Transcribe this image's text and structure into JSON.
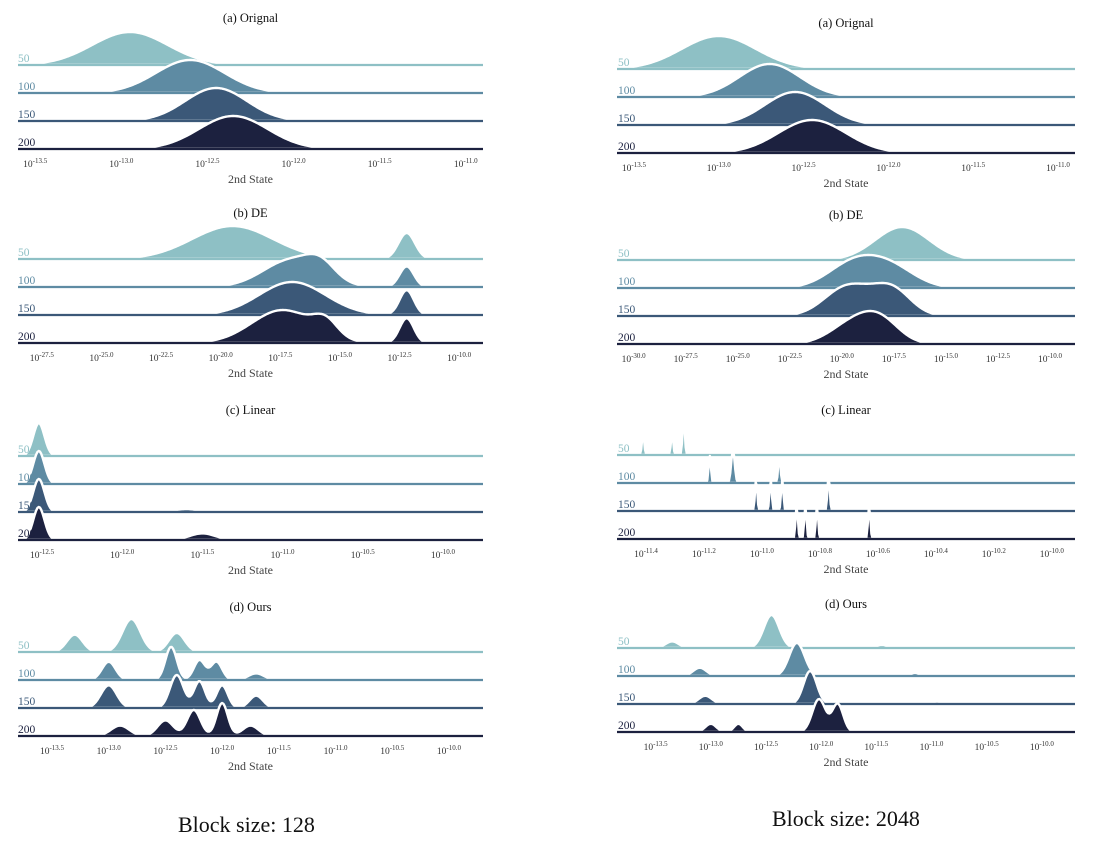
{
  "columns": [
    {
      "caption": "Block size: 128",
      "panels": [
        {
          "title": "(a) Orignal",
          "xlabel": "2nd State",
          "xlim": [
            -13.6,
            -10.9
          ],
          "ticks": [
            -13.5,
            -13.0,
            -12.5,
            -12.0,
            -11.5,
            -11.0
          ],
          "tick_labels": [
            "10^{-13.5}",
            "10^{-13.0}",
            "10^{-12.5}",
            "10^{-12.0}",
            "10^{-11.5}",
            "10^{-11.0}"
          ],
          "series": [
            {
              "name": "50",
              "peaks": [
                [
                  -12.95,
                  0.22,
                  1.0
                ]
              ]
            },
            {
              "name": "100",
              "peaks": [
                [
                  -12.6,
                  0.2,
                  1.0
                ]
              ]
            },
            {
              "name": "150",
              "peaks": [
                [
                  -12.45,
                  0.18,
                  1.0
                ]
              ]
            },
            {
              "name": "200",
              "peaks": [
                [
                  -12.35,
                  0.2,
                  1.0
                ]
              ]
            }
          ]
        },
        {
          "title": "(b) DE",
          "xlabel": "2nd State",
          "xlim": [
            -28.5,
            -9.0
          ],
          "ticks": [
            -27.5,
            -25.0,
            -22.5,
            -20.0,
            -17.5,
            -15.0,
            -12.5,
            -10.0
          ],
          "tick_labels": [
            "10^{-27.5}",
            "10^{-25.0}",
            "10^{-22.5}",
            "10^{-20.0}",
            "10^{-17.5}",
            "10^{-15.0}",
            "10^{-12.5}",
            "10^{-10.0}"
          ],
          "series": [
            {
              "name": "50",
              "peaks": [
                [
                  -19.5,
                  1.7,
                  0.95
                ],
                [
                  -12.2,
                  0.35,
                  0.75
                ]
              ]
            },
            {
              "name": "100",
              "peaks": [
                [
                  -17.0,
                  1.2,
                  1.0
                ],
                [
                  -15.8,
                  0.6,
                  0.5
                ],
                [
                  -12.2,
                  0.3,
                  0.75
                ]
              ]
            },
            {
              "name": "150",
              "peaks": [
                [
                  -17.0,
                  1.4,
                  1.0
                ],
                [
                  -12.2,
                  0.3,
                  0.75
                ]
              ]
            },
            {
              "name": "200",
              "peaks": [
                [
                  -17.4,
                  1.3,
                  1.0
                ],
                [
                  -15.6,
                  0.5,
                  0.45
                ],
                [
                  -12.2,
                  0.3,
                  0.75
                ]
              ]
            }
          ]
        },
        {
          "title": "(c) Linear",
          "xlabel": "2nd State",
          "xlim": [
            -12.65,
            -9.75
          ],
          "ticks": [
            -12.5,
            -12.0,
            -11.5,
            -11.0,
            -10.5,
            -10.0
          ],
          "tick_labels": [
            "10^{-12.5}",
            "10^{-12.0}",
            "10^{-11.5}",
            "10^{-11.0}",
            "10^{-10.5}",
            "10^{-10.0}"
          ],
          "series": [
            {
              "name": "50",
              "peaks": [
                [
                  -12.52,
                  0.035,
                  1.0
                ],
                [
                  -12.1,
                  0.04,
                  0.03
                ]
              ]
            },
            {
              "name": "100",
              "peaks": [
                [
                  -12.52,
                  0.035,
                  0.8
                ],
                [
                  -11.7,
                  0.08,
                  0.04
                ]
              ]
            },
            {
              "name": "150",
              "peaks": [
                [
                  -12.52,
                  0.035,
                  0.75
                ],
                [
                  -11.6,
                  0.08,
                  0.07
                ]
              ]
            },
            {
              "name": "200",
              "peaks": [
                [
                  -12.52,
                  0.035,
                  0.45
                ],
                [
                  -11.5,
                  0.08,
                  0.09
                ]
              ]
            }
          ]
        },
        {
          "title": "(d) Ours",
          "xlabel": "2nd State",
          "xlim": [
            -13.8,
            -9.7
          ],
          "ticks": [
            -13.5,
            -13.0,
            -12.5,
            -12.0,
            -11.5,
            -11.0,
            -10.5,
            -10.0
          ],
          "tick_labels": [
            "10^{-13.5}",
            "10^{-13.0}",
            "10^{-12.5}",
            "10^{-12.0}",
            "10^{-11.5}",
            "10^{-11.0}",
            "10^{-10.5}",
            "10^{-10.0}"
          ],
          "series": [
            {
              "name": "50",
              "peaks": [
                [
                  -13.3,
                  0.07,
                  0.5
                ],
                [
                  -12.8,
                  0.08,
                  0.95
                ],
                [
                  -12.4,
                  0.07,
                  0.55
                ]
              ]
            },
            {
              "name": "100",
              "peaks": [
                [
                  -13.0,
                  0.06,
                  0.55
                ],
                [
                  -12.45,
                  0.05,
                  1.0
                ],
                [
                  -12.2,
                  0.05,
                  0.6
                ],
                [
                  -12.05,
                  0.05,
                  0.55
                ],
                [
                  -11.7,
                  0.07,
                  0.2
                ]
              ]
            },
            {
              "name": "150",
              "peaks": [
                [
                  -13.0,
                  0.07,
                  0.55
                ],
                [
                  -12.4,
                  0.06,
                  0.8
                ],
                [
                  -12.2,
                  0.05,
                  0.65
                ],
                [
                  -12.0,
                  0.05,
                  0.55
                ],
                [
                  -11.7,
                  0.06,
                  0.3
                ]
              ]
            },
            {
              "name": "200",
              "peaks": [
                [
                  -12.9,
                  0.08,
                  0.3
                ],
                [
                  -12.5,
                  0.07,
                  0.45
                ],
                [
                  -12.25,
                  0.06,
                  0.75
                ],
                [
                  -12.0,
                  0.05,
                  0.95
                ],
                [
                  -11.75,
                  0.07,
                  0.3
                ]
              ]
            }
          ]
        }
      ]
    },
    {
      "caption": "Block size: 2048",
      "panels": [
        {
          "title": "(a) Orignal",
          "xlabel": "2nd State",
          "xlim": [
            -13.6,
            -10.9
          ],
          "ticks": [
            -13.5,
            -13.0,
            -12.5,
            -12.0,
            -11.5,
            -11.0
          ],
          "tick_labels": [
            "10^{-13.5}",
            "10^{-13.0}",
            "10^{-12.5}",
            "10^{-12.0}",
            "10^{-11.5}",
            "10^{-11.0}"
          ],
          "series": [
            {
              "name": "50",
              "peaks": [
                [
                  -13.0,
                  0.22,
                  1.0
                ]
              ]
            },
            {
              "name": "100",
              "peaks": [
                [
                  -12.7,
                  0.18,
                  1.0
                ]
              ]
            },
            {
              "name": "150",
              "peaks": [
                [
                  -12.55,
                  0.18,
                  1.0
                ]
              ]
            },
            {
              "name": "200",
              "peaks": [
                [
                  -12.45,
                  0.2,
                  1.0
                ]
              ]
            }
          ]
        },
        {
          "title": "(b) DE",
          "xlabel": "2nd State",
          "xlim": [
            -30.8,
            -8.8
          ],
          "ticks": [
            -30.0,
            -27.5,
            -25.0,
            -22.5,
            -20.0,
            -17.5,
            -15.0,
            -12.5,
            -10.0
          ],
          "tick_labels": [
            "10^{-30.0}",
            "10^{-27.5}",
            "10^{-25.0}",
            "10^{-22.5}",
            "10^{-20.0}",
            "10^{-17.5}",
            "10^{-15.0}",
            "10^{-12.5}",
            "10^{-10.0}"
          ],
          "series": [
            {
              "name": "50",
              "peaks": [
                [
                  -17.1,
                  1.3,
                  1.0
                ]
              ]
            },
            {
              "name": "100",
              "peaks": [
                [
                  -19.5,
                  1.2,
                  0.85
                ],
                [
                  -17.7,
                  1.2,
                  0.75
                ]
              ]
            },
            {
              "name": "150",
              "peaks": [
                [
                  -19.7,
                  1.1,
                  0.85
                ],
                [
                  -17.6,
                  0.9,
                  0.75
                ]
              ]
            },
            {
              "name": "200",
              "peaks": [
                [
                  -19.4,
                  1.1,
                  0.85
                ],
                [
                  -18.1,
                  0.9,
                  0.75
                ]
              ]
            }
          ]
        },
        {
          "title": "(c) Linear",
          "xlabel": "2nd State",
          "xlim": [
            -11.5,
            -9.92
          ],
          "ticks": [
            -11.4,
            -11.2,
            -11.0,
            -10.8,
            -10.6,
            -10.4,
            -10.2,
            -10.0
          ],
          "tick_labels": [
            "10^{-11.4}",
            "10^{-11.2}",
            "10^{-11.0}",
            "10^{-10.8}",
            "10^{-10.6}",
            "10^{-10.4}",
            "10^{-10.2}",
            "10^{-10.0}"
          ],
          "series": [
            {
              "name": "50",
              "peaks": [
                [
                  -11.41,
                  0.004,
                  0.6
                ],
                [
                  -11.31,
                  0.004,
                  0.6
                ],
                [
                  -11.27,
                  0.004,
                  1.0
                ]
              ]
            },
            {
              "name": "100",
              "peaks": [
                [
                  -11.18,
                  0.004,
                  0.45
                ],
                [
                  -11.1,
                  0.006,
                  0.55
                ],
                [
                  -10.94,
                  0.004,
                  0.45
                ]
              ]
            },
            {
              "name": "150",
              "peaks": [
                [
                  -11.02,
                  0.004,
                  0.4
                ],
                [
                  -10.97,
                  0.004,
                  0.4
                ],
                [
                  -10.93,
                  0.004,
                  0.4
                ],
                [
                  -10.77,
                  0.004,
                  0.45
                ]
              ]
            },
            {
              "name": "200",
              "peaks": [
                [
                  -10.88,
                  0.004,
                  0.45
                ],
                [
                  -10.85,
                  0.004,
                  0.45
                ],
                [
                  -10.81,
                  0.004,
                  0.45
                ],
                [
                  -10.63,
                  0.004,
                  0.45
                ]
              ]
            }
          ]
        },
        {
          "title": "(d) Ours",
          "xlabel": "2nd State",
          "xlim": [
            -13.85,
            -9.7
          ],
          "ticks": [
            -13.5,
            -13.0,
            -12.5,
            -12.0,
            -11.5,
            -11.0,
            -10.5,
            -10.0
          ],
          "tick_labels": [
            "10^{-13.5}",
            "10^{-13.0}",
            "10^{-12.5}",
            "10^{-12.0}",
            "10^{-11.5}",
            "10^{-11.0}",
            "10^{-10.5}",
            "10^{-10.0}"
          ],
          "series": [
            {
              "name": "50",
              "peaks": [
                [
                  -13.35,
                  0.06,
                  0.2
                ],
                [
                  -12.45,
                  0.07,
                  1.0
                ],
                [
                  -11.45,
                  0.05,
                  0.1
                ]
              ]
            },
            {
              "name": "100",
              "peaks": [
                [
                  -13.1,
                  0.06,
                  0.25
                ],
                [
                  -12.22,
                  0.07,
                  1.0
                ],
                [
                  -11.15,
                  0.04,
                  0.1
                ]
              ]
            },
            {
              "name": "150",
              "peaks": [
                [
                  -13.05,
                  0.06,
                  0.25
                ],
                [
                  -12.1,
                  0.06,
                  1.0
                ],
                [
                  -10.95,
                  0.05,
                  0.08
                ]
              ]
            },
            {
              "name": "200",
              "peaks": [
                [
                  -13.0,
                  0.05,
                  0.25
                ],
                [
                  -12.75,
                  0.04,
                  0.25
                ],
                [
                  -12.02,
                  0.06,
                  1.0
                ],
                [
                  -11.85,
                  0.05,
                  0.85
                ]
              ]
            }
          ]
        }
      ]
    }
  ],
  "colors": {
    "50": "#8ec0c5",
    "100": "#5e8ba3",
    "150": "#3b5878",
    "200": "#1c213f"
  }
}
